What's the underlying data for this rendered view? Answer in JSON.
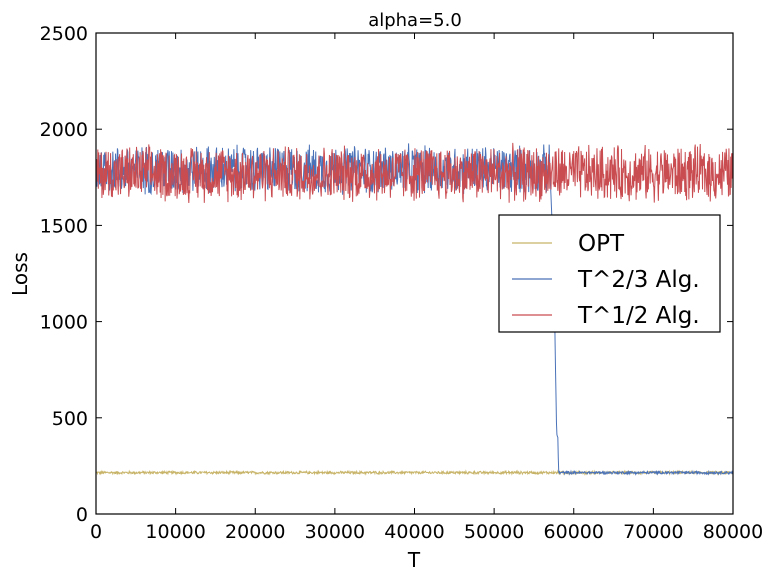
{
  "chart_data": {
    "type": "line",
    "title": "alpha=5.0",
    "xlabel": "T",
    "ylabel": "Loss",
    "xlim": [
      0,
      80000
    ],
    "ylim": [
      0,
      2500
    ],
    "xticks": [
      "0",
      "10000",
      "20000",
      "30000",
      "40000",
      "50000",
      "60000",
      "70000",
      "80000"
    ],
    "yticks": [
      "0",
      "500",
      "1000",
      "1500",
      "2000",
      "2500"
    ],
    "legend_position": "center-right",
    "series": [
      {
        "name": "OPT",
        "color": "#c8b468",
        "description": "flat noisy line",
        "x": [
          0,
          80000
        ],
        "y": [
          215,
          215
        ],
        "noise": 8
      },
      {
        "name": "T^2/3 Alg.",
        "color": "#4a72b8",
        "x": [
          0,
          57000,
          57400,
          57600,
          57700,
          57750,
          57800,
          57900,
          58000,
          58100,
          80000
        ],
        "y": [
          1790,
          1790,
          1400,
          1050,
          760,
          700,
          500,
          400,
          400,
          215,
          215
        ],
        "noise_before_drop": 140,
        "noise_after_drop": 8
      },
      {
        "name": "T^1/2 Alg.",
        "color": "#c94c51",
        "x": [
          0,
          80000
        ],
        "y": [
          1770,
          1770
        ],
        "noise": 160
      }
    ],
    "legend": [
      "OPT",
      "T^2/3 Alg.",
      "T^1/2 Alg."
    ]
  }
}
